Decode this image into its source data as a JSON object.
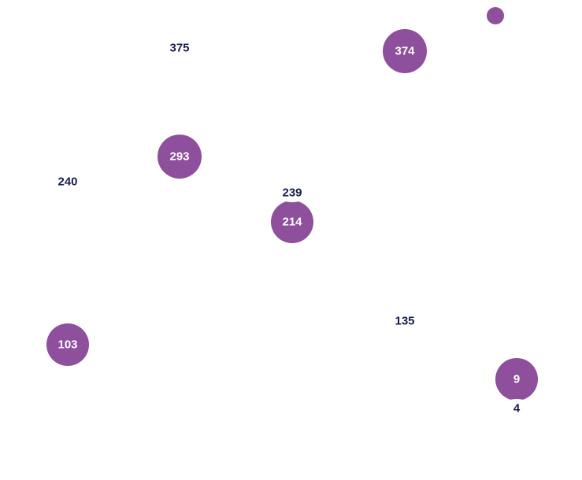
{
  "colors": {
    "bubble": "#8e4f9d",
    "label_inside": "#ffffff",
    "label_outside": "#1a1f4a",
    "halo": "#ffffff"
  },
  "chart_data": {
    "type": "scatter",
    "title": "",
    "xlabel": "",
    "ylabel": "",
    "grid": false,
    "legend": "none",
    "points": [
      {
        "label": "375",
        "col": 1,
        "row": 0,
        "size": 0
      },
      {
        "label": "374",
        "col": 3,
        "row": 0,
        "size": 374
      },
      {
        "label": "",
        "col": 4,
        "row": -1,
        "size": 60
      },
      {
        "label": "293",
        "col": 1,
        "row": 1,
        "size": 293
      },
      {
        "label": "240",
        "col": 0,
        "row": 1.2,
        "size": 0
      },
      {
        "label": "239",
        "col": 2,
        "row": 1.3,
        "size": 0
      },
      {
        "label": "214",
        "col": 2,
        "row": 1.6,
        "size": 214
      },
      {
        "label": "135",
        "col": 3,
        "row": 2.5,
        "size": 0
      },
      {
        "label": "103",
        "col": 0,
        "row": 3,
        "size": 103
      },
      {
        "label": "9",
        "col": 4,
        "row": 3.3,
        "size": 9
      },
      {
        "label": "4",
        "col": 4,
        "row": 3.5,
        "size": 0
      }
    ]
  }
}
